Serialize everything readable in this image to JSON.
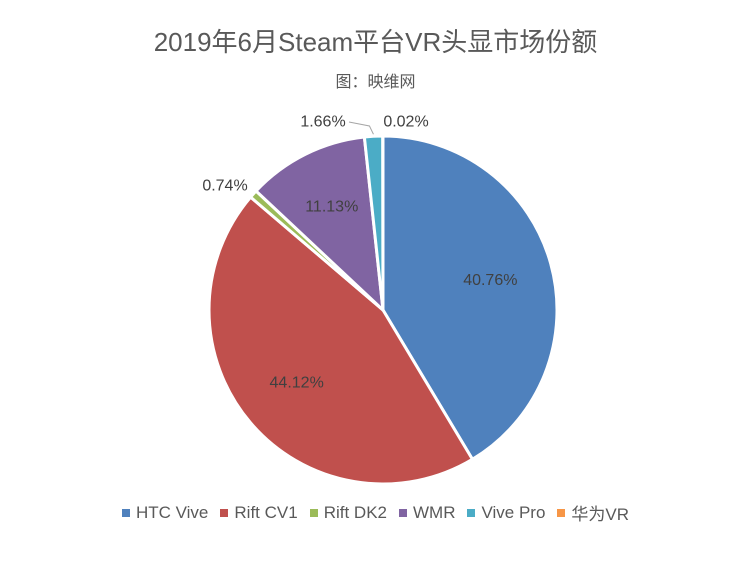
{
  "chart_data": {
    "type": "pie",
    "title": "2019年6月Steam平台VR头显市场份额",
    "subtitle": "图：映维网",
    "slices": [
      {
        "name": "HTC Vive",
        "value": 40.76,
        "label": "40.76%",
        "color": "#4f81bd"
      },
      {
        "name": "Rift CV1",
        "value": 44.12,
        "label": "44.12%",
        "color": "#c0504d"
      },
      {
        "name": "Rift DK2",
        "value": 0.74,
        "label": "0.74%",
        "color": "#9bbb59"
      },
      {
        "name": "WMR",
        "value": 11.13,
        "label": "11.13%",
        "color": "#8064a2"
      },
      {
        "name": "Vive Pro",
        "value": 1.66,
        "label": "1.66%",
        "color": "#4bacc6"
      },
      {
        "name": "华为VR",
        "value": 0.02,
        "label": "0.02%",
        "color": "#f79646"
      }
    ],
    "legend_position": "bottom"
  }
}
